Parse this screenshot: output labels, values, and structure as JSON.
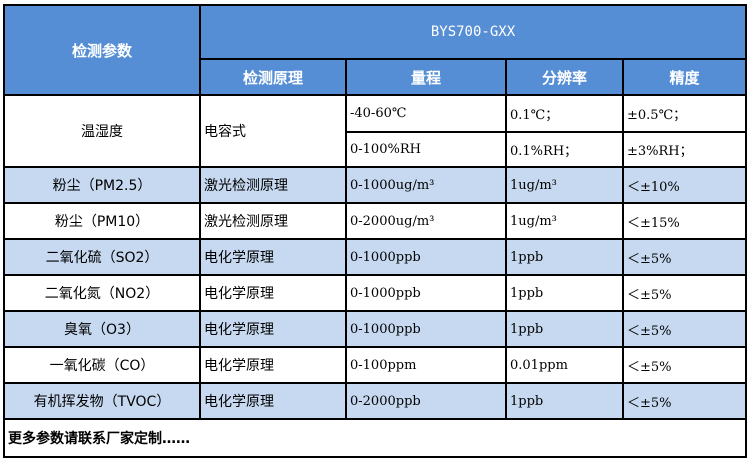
{
  "header": {
    "param_label": "检测参数",
    "model": "BYS700-GXX",
    "columns": [
      "检测原理",
      "量程",
      "分辨率",
      "精度"
    ]
  },
  "colors": {
    "header_bg": "#558ed5",
    "alt_row_bg": "#c6d9f0"
  },
  "temp_humidity": {
    "param": "温湿度",
    "principle": "电容式",
    "rows": [
      {
        "range": "-40-60℃",
        "resolution": "0.1℃；",
        "accuracy": "±0.5℃；"
      },
      {
        "range": "0-100%RH",
        "resolution": "0.1%RH；",
        "accuracy": "±3%RH；"
      }
    ]
  },
  "rows": [
    {
      "param": "粉尘（PM2.5）",
      "principle": "激光检测原理",
      "range": "0-1000ug/m³",
      "resolution": "1ug/m³",
      "accuracy": "＜±10%"
    },
    {
      "param": "粉尘（PM10）",
      "principle": "激光检测原理",
      "range": "0-2000ug/m³",
      "resolution": "1ug/m³",
      "accuracy": "＜±15%"
    },
    {
      "param": "二氧化硫（SO2）",
      "principle": "电化学原理",
      "range": "0-1000ppb",
      "resolution": "1ppb",
      "accuracy": "＜±5%"
    },
    {
      "param": "二氧化氮（NO2）",
      "principle": "电化学原理",
      "range": "0-1000ppb",
      "resolution": "1ppb",
      "accuracy": "＜±5%"
    },
    {
      "param": "臭氧（O3）",
      "principle": "电化学原理",
      "range": "0-1000ppb",
      "resolution": "1ppb",
      "accuracy": "＜±5%"
    },
    {
      "param": "一氧化碳（CO）",
      "principle": "电化学原理",
      "range": "0-100ppm",
      "resolution": "0.01ppm",
      "accuracy": "＜±5%"
    },
    {
      "param": "有机挥发物（TVOC）",
      "principle": "电化学原理",
      "range": "0-2000ppb",
      "resolution": "1ppb",
      "accuracy": "＜±5%"
    }
  ],
  "footer": "更多参数请联系厂家定制……"
}
